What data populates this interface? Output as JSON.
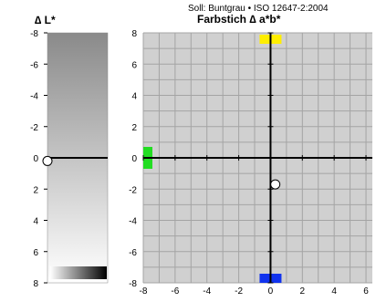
{
  "chart_data": [
    {
      "type": "strip",
      "title": "∆ L*",
      "y_ticks": [
        -8,
        -6,
        -4,
        -2,
        0,
        2,
        4,
        6,
        8
      ],
      "ylim": [
        -8,
        8
      ],
      "grid": false,
      "marker": {
        "y": 0.2
      },
      "colors": {
        "dark": "#8a8a8a",
        "light": "#ffffff"
      }
    },
    {
      "type": "scatter",
      "subtitle": "Soll: Buntgrau • ISO 12647-2:2004",
      "title": "Farbstich ∆ a*b*",
      "x_ticks": [
        -8,
        -6,
        -4,
        -2,
        0,
        2,
        4,
        6
      ],
      "y_ticks": [
        8,
        6,
        4,
        2,
        0,
        -2,
        -4,
        -6,
        -8
      ],
      "xlim": [
        -8,
        6.4
      ],
      "ylim": [
        -8,
        8
      ],
      "grid": true,
      "points": [
        {
          "x": 0.3,
          "y": -1.7
        }
      ],
      "axis_markers": [
        {
          "name": "yellow",
          "x": 0,
          "y": 8,
          "color": "#ffee00"
        },
        {
          "name": "green",
          "x": -8,
          "y": 0,
          "color": "#22dd22"
        },
        {
          "name": "blue",
          "x": 0,
          "y": -8,
          "color": "#1133ee"
        }
      ],
      "colors": {
        "background": "#d0d0d0",
        "grid": "#a4a4a4",
        "axis": "#000000"
      }
    }
  ]
}
